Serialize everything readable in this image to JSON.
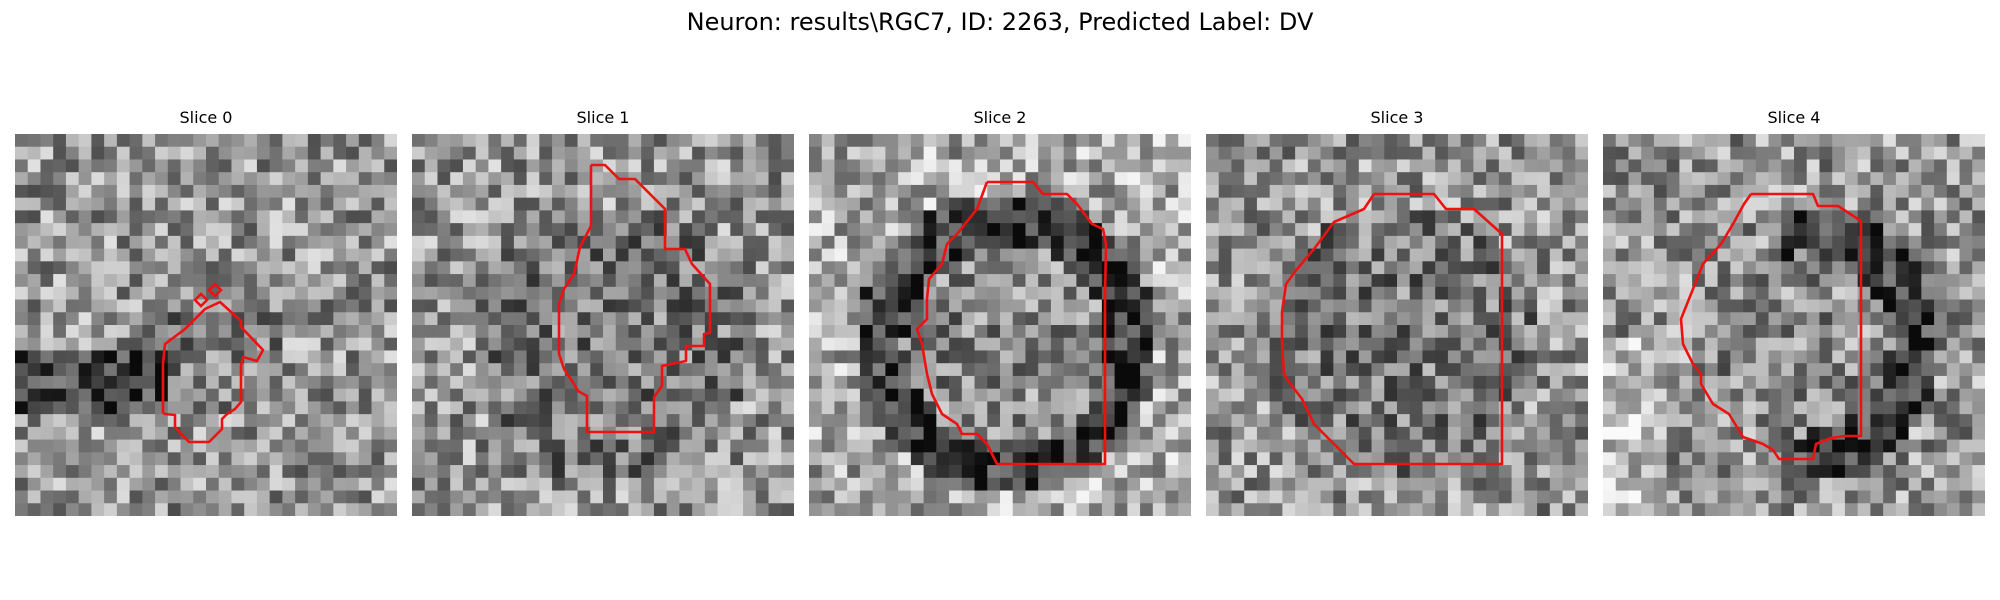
{
  "figure": {
    "title": "Neuron: results\\RGC7, ID: 2263, Predicted Label: DV"
  },
  "colors": {
    "contour": "#ee1111",
    "background": "#ffffff"
  },
  "panels": [
    {
      "title": "Slice 0",
      "seed": 11,
      "shade": "dark-band"
    },
    {
      "title": "Slice 1",
      "seed": 23,
      "shade": "mottled"
    },
    {
      "title": "Slice 2",
      "seed": 37,
      "shade": "ring"
    },
    {
      "title": "Slice 3",
      "seed": 53,
      "shade": "mottled"
    },
    {
      "title": "Slice 4",
      "seed": 71,
      "shade": "ring-right"
    }
  ]
}
